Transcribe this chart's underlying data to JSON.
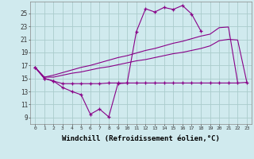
{
  "bg_color": "#d0eaee",
  "grid_color": "#aacccc",
  "line_color": "#880088",
  "xlabel": "Windchill (Refroidissement éolien,°C)",
  "xlabel_fontsize": 6.5,
  "ylabel_ticks": [
    9,
    11,
    13,
    15,
    17,
    19,
    21,
    23,
    25
  ],
  "xticks": [
    0,
    1,
    2,
    3,
    4,
    5,
    6,
    7,
    8,
    9,
    10,
    11,
    12,
    13,
    14,
    15,
    16,
    17,
    18,
    19,
    20,
    21,
    22,
    23
  ],
  "xlim": [
    -0.5,
    23.5
  ],
  "ylim": [
    8.0,
    26.8
  ],
  "series1_x": [
    0,
    1,
    2,
    3,
    4,
    5,
    6,
    7,
    8,
    9,
    10,
    11,
    12,
    13,
    14,
    15,
    16,
    17,
    18,
    19,
    20,
    21,
    22,
    23
  ],
  "series1_y": [
    16.7,
    15.0,
    14.6,
    14.2,
    14.2,
    14.2,
    14.2,
    14.2,
    14.3,
    14.3,
    14.3,
    14.3,
    14.3,
    14.3,
    14.3,
    14.3,
    14.3,
    14.3,
    14.3,
    14.3,
    14.3,
    14.3,
    14.3,
    14.4
  ],
  "series2_x": [
    0,
    1,
    2,
    3,
    4,
    5,
    6,
    7,
    8,
    9,
    10,
    11,
    12,
    13,
    14,
    15,
    16,
    17,
    18,
    19,
    20,
    21,
    22,
    23
  ],
  "series2_y": [
    16.7,
    15.0,
    14.6,
    13.6,
    13.0,
    12.5,
    9.5,
    10.3,
    9.1,
    14.2,
    14.3,
    22.2,
    25.7,
    25.2,
    25.9,
    25.6,
    26.2,
    24.9,
    22.3,
    null,
    null,
    null,
    null,
    null
  ],
  "series3_x": [
    0,
    1,
    2,
    3,
    4,
    5,
    6,
    7,
    8,
    9,
    10,
    11,
    12,
    13,
    14,
    15,
    16,
    17,
    18,
    19,
    20,
    21,
    22,
    23
  ],
  "series3_y": [
    16.7,
    15.2,
    15.2,
    15.5,
    15.8,
    16.0,
    16.3,
    16.6,
    16.8,
    17.1,
    17.4,
    17.7,
    17.9,
    18.2,
    18.5,
    18.8,
    19.0,
    19.3,
    19.6,
    20.0,
    20.8,
    21.0,
    20.9,
    14.4
  ],
  "series4_x": [
    0,
    1,
    2,
    3,
    4,
    5,
    6,
    7,
    8,
    9,
    10,
    11,
    12,
    13,
    14,
    15,
    16,
    17,
    18,
    19,
    20,
    21,
    22,
    23
  ],
  "series4_y": [
    16.7,
    15.2,
    15.5,
    15.9,
    16.3,
    16.7,
    17.0,
    17.4,
    17.8,
    18.2,
    18.5,
    18.9,
    19.3,
    19.6,
    20.0,
    20.4,
    20.7,
    21.1,
    21.5,
    21.8,
    22.8,
    22.9,
    14.4,
    null
  ]
}
